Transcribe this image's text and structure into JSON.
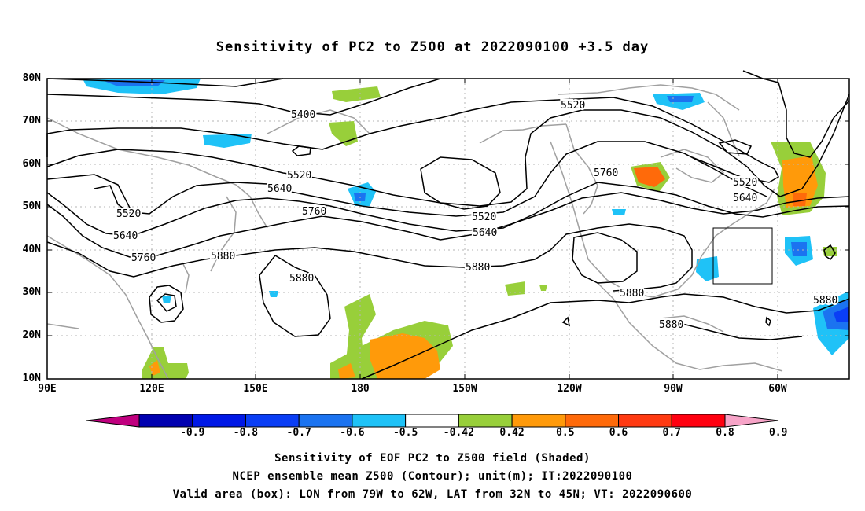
{
  "title": "Sensitivity of PC2 to Z500 at 2022090100 +3.5 day",
  "map": {
    "lat_labels": [
      "80N",
      "70N",
      "60N",
      "50N",
      "40N",
      "30N",
      "20N",
      "10N"
    ],
    "lon_labels": [
      "90E",
      "120E",
      "150E",
      "180",
      "150W",
      "120W",
      "90W",
      "60W"
    ],
    "contour_labels": [
      "5400",
      "5520",
      "5640",
      "5760",
      "5880"
    ],
    "valid_area": {
      "lon_from": "79W",
      "lon_to": "62W",
      "lat_from": "32N",
      "lat_to": "45N"
    }
  },
  "colorbar": {
    "labels": [
      "-0.9",
      "-0.8",
      "-0.7",
      "-0.6",
      "-0.5",
      "-0.42",
      "0.42",
      "0.5",
      "0.6",
      "0.7",
      "0.8",
      "0.9"
    ],
    "colors": [
      "#c0007f",
      "#0000b0",
      "#0018e6",
      "#0a3ef5",
      "#1b73f0",
      "#1fc2f7",
      "#ffffff",
      "#98cf3a",
      "#ff9a0a",
      "#ff6a0a",
      "#ff3a12",
      "#ff0010",
      "#f7a4c8"
    ]
  },
  "captions": {
    "line1": "Sensitivity of EOF PC2 to Z500 field (Shaded)",
    "line2": "NCEP ensemble mean Z500 (Contour); unit(m); IT:2022090100",
    "line3": "Valid area (box): LON from 79W to 62W, LAT from 32N to 45N; VT: 2022090600"
  }
}
